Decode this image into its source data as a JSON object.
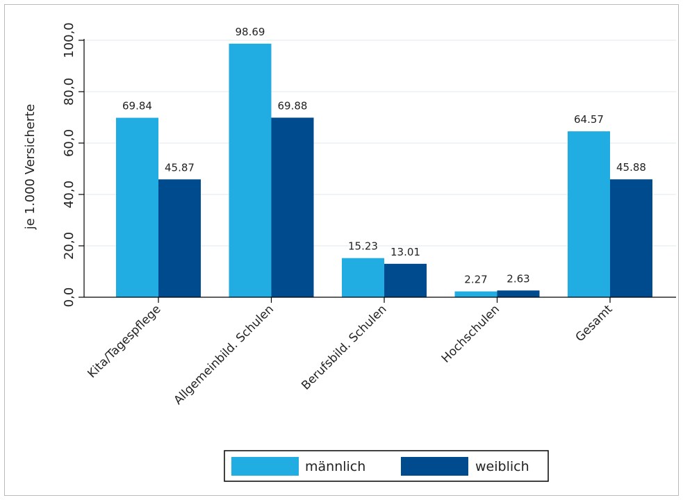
{
  "chart_data": {
    "type": "bar",
    "title": "",
    "xlabel": "",
    "ylabel": "je 1.000 Versicherte",
    "ylim": [
      0,
      100
    ],
    "yticks": [
      0,
      20,
      40,
      60,
      80,
      100
    ],
    "ytick_labels": [
      "0,0",
      "20,0",
      "40,0",
      "60,0",
      "80,0",
      "100,0"
    ],
    "grid": true,
    "legend_position": "bottom",
    "categories": [
      "Kita/Tagespflege",
      "Allgemeinbild. Schulen",
      "Berufsbild. Schulen",
      "Hochschulen",
      "Gesamt"
    ],
    "series": [
      {
        "name": "männlich",
        "color": "#22ade2",
        "values": [
          69.84,
          98.69,
          15.23,
          2.27,
          64.57
        ],
        "labels": [
          "69.84",
          "98.69",
          "15.23",
          "2.27",
          "64.57"
        ]
      },
      {
        "name": "weiblich",
        "color": "#004b8d",
        "values": [
          45.87,
          69.88,
          13.01,
          2.63,
          45.88
        ],
        "labels": [
          "45.87",
          "69.88",
          "13.01",
          "2.63",
          "45.88"
        ]
      }
    ]
  }
}
